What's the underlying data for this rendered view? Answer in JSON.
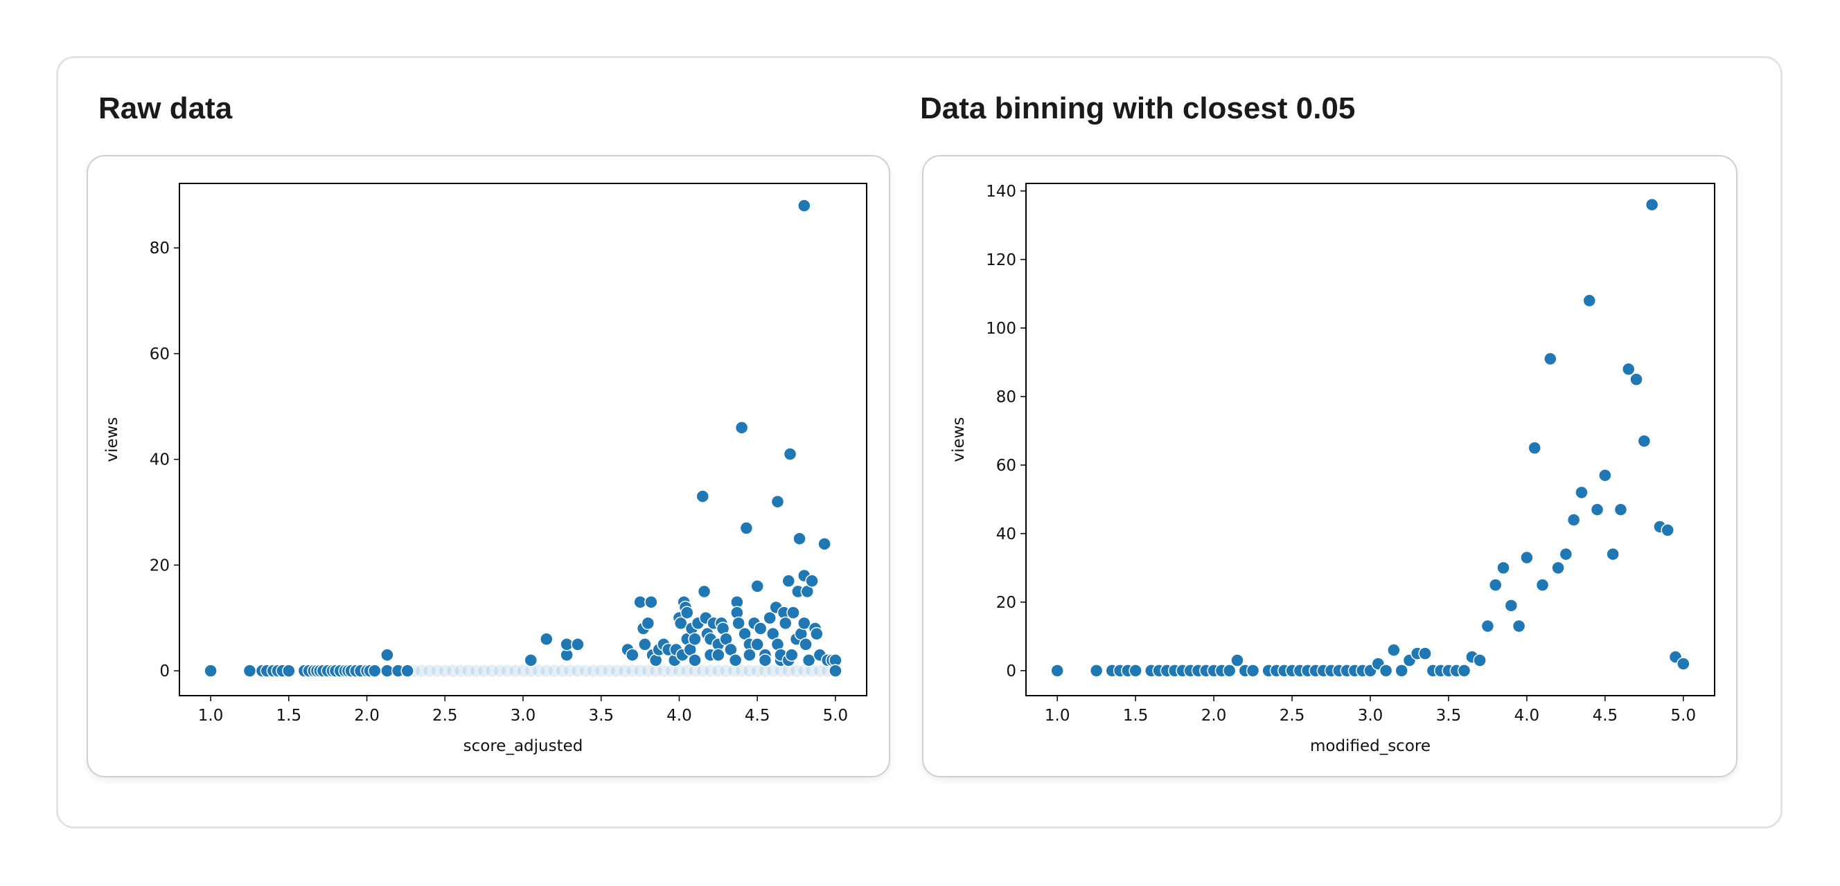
{
  "panels": [
    {
      "title": "Raw data"
    },
    {
      "title": "Data binning with closest 0.05"
    }
  ],
  "chart_data": [
    {
      "type": "scatter",
      "title": "Raw data",
      "xlabel": "score_adjusted",
      "ylabel": "views",
      "xlim": [
        0.8,
        5.2
      ],
      "ylim": [
        -4.7,
        92.2
      ],
      "xticks": [
        "1.0",
        "1.5",
        "2.0",
        "2.5",
        "3.0",
        "3.5",
        "4.0",
        "4.5",
        "5.0"
      ],
      "yticks": [
        "0",
        "20",
        "40",
        "60",
        "80"
      ],
      "color": "#1f77b4",
      "dense_zero_x": [
        2.3,
        2.35,
        2.4,
        2.45,
        2.5,
        2.55,
        2.6,
        2.65,
        2.7,
        2.75,
        2.8,
        2.85,
        2.9,
        2.95,
        3.0,
        3.05,
        3.1,
        3.15,
        3.2,
        3.25,
        3.3,
        3.35,
        3.4,
        3.45,
        3.5,
        3.55,
        3.6,
        3.65,
        3.7,
        3.75,
        3.8,
        3.85,
        3.9,
        3.95,
        4.0,
        4.05,
        4.1,
        4.15,
        4.2,
        4.25,
        4.3,
        4.35,
        4.4,
        4.45,
        4.5,
        4.55,
        4.6,
        4.65,
        4.7,
        4.75,
        4.8,
        4.85,
        4.9,
        4.95
      ],
      "points": [
        [
          1.0,
          0
        ],
        [
          1.25,
          0
        ],
        [
          1.33,
          0
        ],
        [
          1.36,
          0
        ],
        [
          1.4,
          0
        ],
        [
          1.43,
          0
        ],
        [
          1.46,
          0
        ],
        [
          1.5,
          0
        ],
        [
          1.6,
          0
        ],
        [
          1.63,
          0
        ],
        [
          1.66,
          0
        ],
        [
          1.68,
          0
        ],
        [
          1.7,
          0
        ],
        [
          1.72,
          0
        ],
        [
          1.75,
          0
        ],
        [
          1.78,
          0
        ],
        [
          1.8,
          0
        ],
        [
          1.83,
          0
        ],
        [
          1.86,
          0
        ],
        [
          1.88,
          0
        ],
        [
          1.9,
          0
        ],
        [
          1.93,
          0
        ],
        [
          1.96,
          0
        ],
        [
          2.0,
          0
        ],
        [
          2.02,
          0
        ],
        [
          2.05,
          0
        ],
        [
          2.13,
          0
        ],
        [
          2.2,
          0
        ],
        [
          2.26,
          0
        ],
        [
          2.13,
          3
        ],
        [
          3.05,
          2
        ],
        [
          3.15,
          6
        ],
        [
          3.28,
          3
        ],
        [
          3.28,
          5
        ],
        [
          3.35,
          5
        ],
        [
          3.67,
          4
        ],
        [
          3.7,
          3
        ],
        [
          3.75,
          13
        ],
        [
          3.77,
          8
        ],
        [
          3.78,
          5
        ],
        [
          3.8,
          9
        ],
        [
          3.82,
          13
        ],
        [
          3.83,
          3
        ],
        [
          3.85,
          2
        ],
        [
          3.87,
          4
        ],
        [
          3.9,
          5
        ],
        [
          3.93,
          4
        ],
        [
          3.97,
          2
        ],
        [
          3.98,
          4
        ],
        [
          4.0,
          10
        ],
        [
          4.01,
          9
        ],
        [
          4.02,
          3
        ],
        [
          4.03,
          13
        ],
        [
          4.04,
          12
        ],
        [
          4.05,
          11
        ],
        [
          4.05,
          6
        ],
        [
          4.07,
          4
        ],
        [
          4.08,
          8
        ],
        [
          4.1,
          6
        ],
        [
          4.1,
          2
        ],
        [
          4.12,
          9
        ],
        [
          4.15,
          33
        ],
        [
          4.16,
          15
        ],
        [
          4.17,
          10
        ],
        [
          4.18,
          7
        ],
        [
          4.2,
          6
        ],
        [
          4.2,
          3
        ],
        [
          4.22,
          9
        ],
        [
          4.25,
          5
        ],
        [
          4.25,
          3
        ],
        [
          4.27,
          9
        ],
        [
          4.28,
          8
        ],
        [
          4.3,
          6
        ],
        [
          4.33,
          4
        ],
        [
          4.36,
          2
        ],
        [
          4.37,
          13
        ],
        [
          4.37,
          11
        ],
        [
          4.38,
          9
        ],
        [
          4.4,
          46
        ],
        [
          4.42,
          7
        ],
        [
          4.43,
          27
        ],
        [
          4.45,
          5
        ],
        [
          4.45,
          3
        ],
        [
          4.48,
          9
        ],
        [
          4.5,
          16
        ],
        [
          4.5,
          5
        ],
        [
          4.52,
          8
        ],
        [
          4.55,
          3
        ],
        [
          4.55,
          2
        ],
        [
          4.58,
          10
        ],
        [
          4.6,
          7
        ],
        [
          4.62,
          12
        ],
        [
          4.63,
          32
        ],
        [
          4.63,
          5
        ],
        [
          4.65,
          2
        ],
        [
          4.65,
          3
        ],
        [
          4.67,
          11
        ],
        [
          4.68,
          9
        ],
        [
          4.7,
          17
        ],
        [
          4.7,
          2
        ],
        [
          4.71,
          41
        ],
        [
          4.72,
          3
        ],
        [
          4.73,
          11
        ],
        [
          4.75,
          6
        ],
        [
          4.76,
          15
        ],
        [
          4.77,
          25
        ],
        [
          4.78,
          7
        ],
        [
          4.8,
          88
        ],
        [
          4.8,
          18
        ],
        [
          4.8,
          9
        ],
        [
          4.81,
          5
        ],
        [
          4.82,
          15
        ],
        [
          4.83,
          2
        ],
        [
          4.85,
          17
        ],
        [
          4.87,
          8
        ],
        [
          4.88,
          7
        ],
        [
          4.9,
          3
        ],
        [
          4.93,
          24
        ],
        [
          4.95,
          2
        ],
        [
          4.98,
          2
        ],
        [
          5.0,
          2
        ],
        [
          5.0,
          0
        ]
      ]
    },
    {
      "type": "scatter",
      "title": "Data binning with closest 0.05",
      "xlabel": "modified_score",
      "ylabel": "views",
      "xlim": [
        0.8,
        5.2
      ],
      "ylim": [
        -7.3,
        142.2
      ],
      "xticks": [
        "1.0",
        "1.5",
        "2.0",
        "2.5",
        "3.0",
        "3.5",
        "4.0",
        "4.5",
        "5.0"
      ],
      "yticks": [
        "0",
        "20",
        "40",
        "60",
        "80",
        "100",
        "120",
        "140"
      ],
      "color": "#1f77b4",
      "dense_zero_x": [],
      "points": [
        [
          1.0,
          0
        ],
        [
          1.25,
          0
        ],
        [
          1.35,
          0
        ],
        [
          1.4,
          0
        ],
        [
          1.45,
          0
        ],
        [
          1.5,
          0
        ],
        [
          1.6,
          0
        ],
        [
          1.65,
          0
        ],
        [
          1.7,
          0
        ],
        [
          1.75,
          0
        ],
        [
          1.8,
          0
        ],
        [
          1.85,
          0
        ],
        [
          1.9,
          0
        ],
        [
          1.95,
          0
        ],
        [
          2.0,
          0
        ],
        [
          2.05,
          0
        ],
        [
          2.1,
          0
        ],
        [
          2.15,
          3
        ],
        [
          2.2,
          0
        ],
        [
          2.25,
          0
        ],
        [
          2.35,
          0
        ],
        [
          2.4,
          0
        ],
        [
          2.45,
          0
        ],
        [
          2.5,
          0
        ],
        [
          2.55,
          0
        ],
        [
          2.6,
          0
        ],
        [
          2.65,
          0
        ],
        [
          2.7,
          0
        ],
        [
          2.75,
          0
        ],
        [
          2.8,
          0
        ],
        [
          2.85,
          0
        ],
        [
          2.9,
          0
        ],
        [
          2.95,
          0
        ],
        [
          3.0,
          0
        ],
        [
          3.05,
          2
        ],
        [
          3.1,
          0
        ],
        [
          3.15,
          6
        ],
        [
          3.2,
          0
        ],
        [
          3.25,
          3
        ],
        [
          3.3,
          5
        ],
        [
          3.35,
          5
        ],
        [
          3.4,
          0
        ],
        [
          3.45,
          0
        ],
        [
          3.5,
          0
        ],
        [
          3.55,
          0
        ],
        [
          3.6,
          0
        ],
        [
          3.65,
          4
        ],
        [
          3.7,
          3
        ],
        [
          3.75,
          13
        ],
        [
          3.8,
          25
        ],
        [
          3.85,
          30
        ],
        [
          3.9,
          19
        ],
        [
          3.95,
          13
        ],
        [
          4.0,
          33
        ],
        [
          4.05,
          65
        ],
        [
          4.1,
          25
        ],
        [
          4.15,
          91
        ],
        [
          4.2,
          30
        ],
        [
          4.25,
          34
        ],
        [
          4.3,
          44
        ],
        [
          4.35,
          52
        ],
        [
          4.4,
          108
        ],
        [
          4.45,
          47
        ],
        [
          4.5,
          57
        ],
        [
          4.55,
          34
        ],
        [
          4.6,
          47
        ],
        [
          4.65,
          88
        ],
        [
          4.7,
          85
        ],
        [
          4.75,
          67
        ],
        [
          4.8,
          136
        ],
        [
          4.85,
          42
        ],
        [
          4.9,
          41
        ],
        [
          4.95,
          4
        ],
        [
          5.0,
          2
        ]
      ]
    }
  ]
}
